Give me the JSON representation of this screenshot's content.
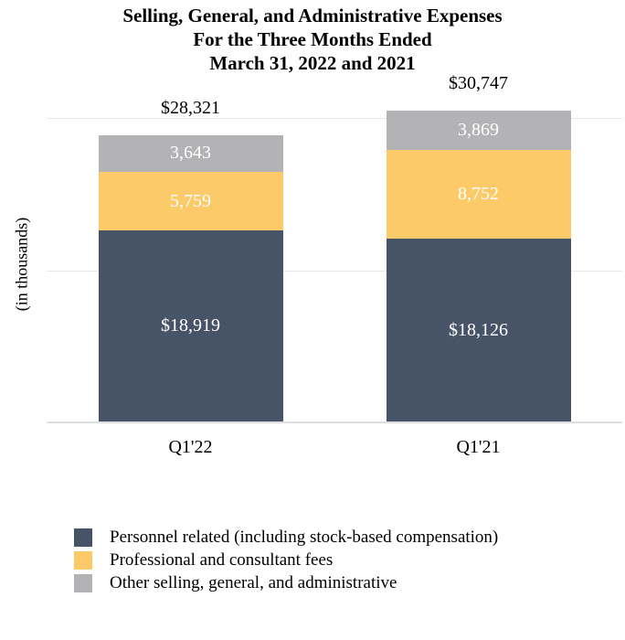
{
  "chart_data": {
    "type": "bar",
    "stacked": true,
    "title": "Selling, General, and Administrative Expenses For the Three Months Ended March 31, 2022 and 2021",
    "title_lines": [
      "Selling, General, and Administrative Expenses",
      "For the Three Months Ended",
      "March 31, 2022 and 2021"
    ],
    "ylabel": "(in thousands)",
    "xlabel": "",
    "categories": [
      "Q1'22",
      "Q1'21"
    ],
    "series": [
      {
        "name": "Personnel related (including stock-based compensation)",
        "color": "#475468",
        "values": [
          18919,
          18126
        ],
        "value_labels": [
          "$18,919",
          "$18,126"
        ]
      },
      {
        "name": "Professional and consultant fees",
        "color": "#fcca69",
        "values": [
          5759,
          8752
        ],
        "value_labels": [
          "5,759",
          "8,752"
        ]
      },
      {
        "name": "Other selling, general, and administrative",
        "color": "#b3b2b5",
        "values": [
          3643,
          3869
        ],
        "value_labels": [
          "3,643",
          "3,869"
        ]
      }
    ],
    "totals": [
      28321,
      30747
    ],
    "total_labels": [
      "$28,321",
      "$30,747"
    ],
    "ylim": [
      0,
      32000
    ],
    "gridline_values": [
      0,
      15000,
      30000
    ],
    "grid": true,
    "legend_position": "bottom-left",
    "colors": {
      "grid": "#e8e8ea",
      "axis": "#dfdfe1",
      "text": "#000000",
      "bar_label": "#ffffff",
      "background": "#ffffff"
    }
  }
}
